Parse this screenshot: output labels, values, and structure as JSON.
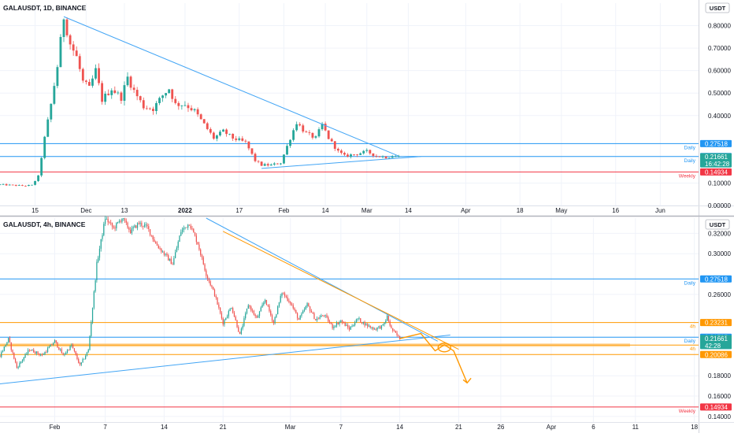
{
  "colors": {
    "up": "#26a69a",
    "down": "#ef5350",
    "grid": "#f0f3fa",
    "axis_text": "#131722",
    "blue_line": "#2196f3",
    "trend_blue": "#42a5f5",
    "red_line": "#f23645",
    "orange": "#ff9800",
    "orange_zone": "#ffcc80",
    "current_tag": "#26a69a"
  },
  "chart_data": [
    {
      "type": "candlestick",
      "title": "GALAUSDT, 1D, BINANCE",
      "currency": "USDT",
      "ylim": [
        0,
        0.9
      ],
      "y_ticks": [
        {
          "v": 0.8,
          "label": "0.80000"
        },
        {
          "v": 0.7,
          "label": "0.70000"
        },
        {
          "v": 0.6,
          "label": "0.60000"
        },
        {
          "v": 0.5,
          "label": "0.50000"
        },
        {
          "v": 0.4,
          "label": "0.40000"
        },
        {
          "v": 0.1,
          "label": "0.10000"
        },
        {
          "v": 0.0,
          "label": "0.00000"
        }
      ],
      "x_ticks": [
        {
          "d": 0,
          "label": "15"
        },
        {
          "d": 16,
          "label": "Dec"
        },
        {
          "d": 28,
          "label": "13"
        },
        {
          "d": 47,
          "label": "2022"
        },
        {
          "d": 64,
          "label": "17"
        },
        {
          "d": 78,
          "label": "Feb"
        },
        {
          "d": 91,
          "label": "14"
        },
        {
          "d": 104,
          "label": "Mar"
        },
        {
          "d": 117,
          "label": "14"
        },
        {
          "d": 135,
          "label": "Apr"
        },
        {
          "d": 152,
          "label": "18"
        },
        {
          "d": 165,
          "label": "May"
        },
        {
          "d": 182,
          "label": "16"
        },
        {
          "d": 196,
          "label": "Jun"
        }
      ],
      "x_domain": [
        -11,
        208
      ],
      "ohlc_anchors": [
        [
          -11,
          0.093
        ],
        [
          -4,
          0.088
        ],
        [
          -1,
          0.09
        ],
        [
          1,
          0.13
        ],
        [
          3,
          0.3
        ],
        [
          5,
          0.45
        ],
        [
          7,
          0.62
        ],
        [
          9,
          0.84
        ],
        [
          11,
          0.72
        ],
        [
          13,
          0.66
        ],
        [
          15,
          0.55
        ],
        [
          17,
          0.52
        ],
        [
          19,
          0.6
        ],
        [
          21,
          0.47
        ],
        [
          24,
          0.52
        ],
        [
          27,
          0.48
        ],
        [
          29,
          0.57
        ],
        [
          31,
          0.51
        ],
        [
          34,
          0.44
        ],
        [
          37,
          0.43
        ],
        [
          40,
          0.49
        ],
        [
          42,
          0.52
        ],
        [
          44,
          0.45
        ],
        [
          47,
          0.45
        ],
        [
          50,
          0.42
        ],
        [
          53,
          0.36
        ],
        [
          56,
          0.3
        ],
        [
          59,
          0.33
        ],
        [
          62,
          0.3
        ],
        [
          66,
          0.28
        ],
        [
          69,
          0.2
        ],
        [
          71,
          0.18
        ],
        [
          74,
          0.18
        ],
        [
          77,
          0.19
        ],
        [
          80,
          0.3
        ],
        [
          82,
          0.37
        ],
        [
          85,
          0.32
        ],
        [
          88,
          0.3
        ],
        [
          90,
          0.36
        ],
        [
          92,
          0.3
        ],
        [
          95,
          0.24
        ],
        [
          97,
          0.22
        ],
        [
          101,
          0.23
        ],
        [
          104,
          0.24
        ],
        [
          107,
          0.22
        ],
        [
          110,
          0.215
        ],
        [
          112,
          0.22
        ],
        [
          114,
          0.2166
        ]
      ],
      "current_price": 0.21661,
      "current_label": "0.21661",
      "countdown": "16:42:28",
      "levels": [
        {
          "v": 0.27518,
          "label": "0.27518",
          "tag": "Daily",
          "color": "#2196f3"
        },
        {
          "v": 0.21795,
          "label": "0.21795",
          "tag": "Daily",
          "color": "#2196f3"
        },
        {
          "v": 0.14934,
          "label": "0.14934",
          "tag": "Weekly",
          "color": "#f23645"
        }
      ],
      "trendlines": [
        {
          "from": [
            9,
            0.84
          ],
          "to": [
            114,
            0.22
          ],
          "color": "#42a5f5"
        },
        {
          "from": [
            71,
            0.165
          ],
          "to": [
            121,
            0.218
          ],
          "color": "#42a5f5"
        }
      ]
    },
    {
      "type": "candlestick",
      "title": "GALAUSDT, 4h, BINANCE",
      "currency": "USDT",
      "ylim": [
        0.1345,
        0.335
      ],
      "y_ticks": [
        {
          "v": 0.32,
          "label": "0.32000"
        },
        {
          "v": 0.3,
          "label": "0.30000"
        },
        {
          "v": 0.26,
          "label": "0.26000"
        },
        {
          "v": 0.18,
          "label": "0.18000"
        },
        {
          "v": 0.16,
          "label": "0.16000"
        },
        {
          "v": 0.14,
          "label": "0.14000"
        }
      ],
      "x_ticks": [
        {
          "d": 0,
          "label": "Feb"
        },
        {
          "d": 6,
          "label": "7"
        },
        {
          "d": 13,
          "label": "14"
        },
        {
          "d": 20,
          "label": "21"
        },
        {
          "d": 28,
          "label": "Mar"
        },
        {
          "d": 34,
          "label": "7"
        },
        {
          "d": 41,
          "label": "14"
        },
        {
          "d": 48,
          "label": "21"
        },
        {
          "d": 53,
          "label": "26"
        },
        {
          "d": 59,
          "label": "Apr"
        },
        {
          "d": 64,
          "label": "6"
        },
        {
          "d": 69,
          "label": "11"
        },
        {
          "d": 76,
          "label": "18"
        }
      ],
      "x_domain": [
        -6.5,
        76.5
      ],
      "ohlc_anchors": [
        [
          -6.5,
          0.2
        ],
        [
          -5.5,
          0.216
        ],
        [
          -4.5,
          0.188
        ],
        [
          -3,
          0.206
        ],
        [
          -1.5,
          0.2
        ],
        [
          0,
          0.214
        ],
        [
          1,
          0.2
        ],
        [
          2,
          0.21
        ],
        [
          3,
          0.19
        ],
        [
          4,
          0.205
        ],
        [
          5,
          0.29
        ],
        [
          6,
          0.335
        ],
        [
          7,
          0.325
        ],
        [
          8,
          0.335
        ],
        [
          9,
          0.322
        ],
        [
          10,
          0.33
        ],
        [
          11,
          0.326
        ],
        [
          12,
          0.31
        ],
        [
          13,
          0.3
        ],
        [
          14,
          0.29
        ],
        [
          15,
          0.322
        ],
        [
          16,
          0.33
        ],
        [
          17,
          0.31
        ],
        [
          18,
          0.28
        ],
        [
          19,
          0.26
        ],
        [
          20,
          0.232
        ],
        [
          21,
          0.248
        ],
        [
          22,
          0.22
        ],
        [
          23,
          0.25
        ],
        [
          24,
          0.236
        ],
        [
          25,
          0.255
        ],
        [
          26,
          0.232
        ],
        [
          27,
          0.262
        ],
        [
          28,
          0.252
        ],
        [
          29,
          0.235
        ],
        [
          30,
          0.25
        ],
        [
          31,
          0.235
        ],
        [
          32,
          0.24
        ],
        [
          33,
          0.228
        ],
        [
          34,
          0.234
        ],
        [
          35,
          0.226
        ],
        [
          36,
          0.236
        ],
        [
          37,
          0.23
        ],
        [
          38,
          0.226
        ],
        [
          39,
          0.229
        ],
        [
          39.5,
          0.238
        ],
        [
          40,
          0.226
        ],
        [
          41,
          0.2166
        ]
      ],
      "current_price": 0.21661,
      "current_label": "0.21661",
      "countdown": "42:28",
      "levels": [
        {
          "v": 0.27518,
          "label": "0.27518",
          "tag": "Daily",
          "color": "#2196f3"
        },
        {
          "v": 0.23231,
          "label": "0.23231",
          "tag": "4h",
          "color": "#ff9800"
        },
        {
          "v": 0.21795,
          "label": "0.21795",
          "tag": "Daily",
          "color": "#2196f3"
        },
        {
          "v": 0.21021,
          "label": "0.21021",
          "tag": "4h",
          "color": "#ff9800"
        },
        {
          "v": 0.20086,
          "label": "0.20086",
          "tag": "",
          "color": "#ff9800"
        },
        {
          "v": 0.14934,
          "label": "0.14934",
          "tag": "Weekly",
          "color": "#f23645"
        }
      ],
      "zone": {
        "from": 0.2085,
        "to": 0.2118
      },
      "trendlines": [
        {
          "from": [
            18,
            0.335
          ],
          "to": [
            45.5,
            0.214
          ],
          "color": "#42a5f5"
        },
        {
          "from": [
            -6.5,
            0.172
          ],
          "to": [
            47,
            0.22
          ],
          "color": "#42a5f5"
        },
        {
          "from": [
            20,
            0.322
          ],
          "to": [
            48,
            0.206
          ],
          "color": "#ff9800"
        }
      ]
    }
  ]
}
